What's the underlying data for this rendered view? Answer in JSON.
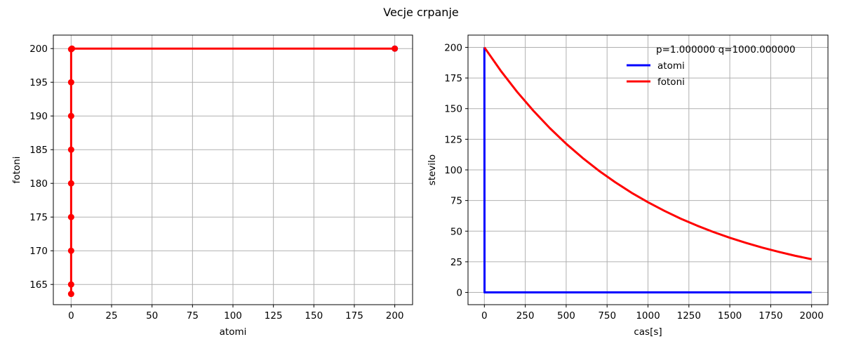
{
  "figure": {
    "title": "Vecje crpanje"
  },
  "chart_data": [
    {
      "type": "scatter",
      "title": "",
      "xlabel": "atomi",
      "ylabel": "fotoni",
      "xlim": [
        -11,
        211
      ],
      "ylim": [
        162.0,
        202.0
      ],
      "xticks": [
        0,
        25,
        50,
        75,
        100,
        125,
        150,
        175,
        200
      ],
      "yticks": [
        165,
        170,
        175,
        180,
        185,
        190,
        195,
        200
      ],
      "grid": true,
      "series": [
        {
          "color": "#0000ff",
          "style": "markers",
          "points": [
            [
              200,
              200
            ]
          ]
        },
        {
          "color": "#ff0000",
          "style": "line+markers",
          "points": [
            [
              200,
              200
            ],
            [
              0.5,
              200
            ],
            [
              0,
              199.9
            ],
            [
              0,
              195
            ],
            [
              0,
              190
            ],
            [
              0,
              185
            ],
            [
              0,
              180
            ],
            [
              0,
              175
            ],
            [
              0,
              170
            ],
            [
              0,
              165
            ],
            [
              0,
              163.6
            ]
          ]
        }
      ]
    },
    {
      "type": "line",
      "title": "",
      "xlabel": "cas[s]",
      "ylabel": "stevilo",
      "xlim": [
        -100,
        2100
      ],
      "ylim": [
        -10,
        210
      ],
      "xticks": [
        0,
        250,
        500,
        750,
        1000,
        1250,
        1500,
        1750,
        2000
      ],
      "yticks": [
        0,
        25,
        50,
        75,
        100,
        125,
        150,
        175,
        200
      ],
      "grid": true,
      "legend_title": "p=1.000000  q=1000.000000",
      "legend_position": "upper-right",
      "series": [
        {
          "name": "atomi",
          "color": "#0000ff",
          "x": [
            0,
            1,
            5,
            2000
          ],
          "y": [
            200,
            0,
            0,
            0
          ]
        },
        {
          "name": "fotoni",
          "color": "#ff0000",
          "x": [
            0,
            100,
            200,
            300,
            400,
            500,
            600,
            700,
            800,
            900,
            1000,
            1100,
            1200,
            1300,
            1400,
            1500,
            1600,
            1700,
            1800,
            1900,
            2000
          ],
          "y": [
            200,
            180.9,
            163.7,
            148.2,
            134.1,
            121.3,
            109.8,
            99.3,
            89.9,
            81.3,
            73.6,
            66.6,
            60.2,
            54.5,
            49.3,
            44.6,
            40.4,
            36.5,
            33.1,
            29.9,
            27.1
          ]
        }
      ]
    }
  ]
}
